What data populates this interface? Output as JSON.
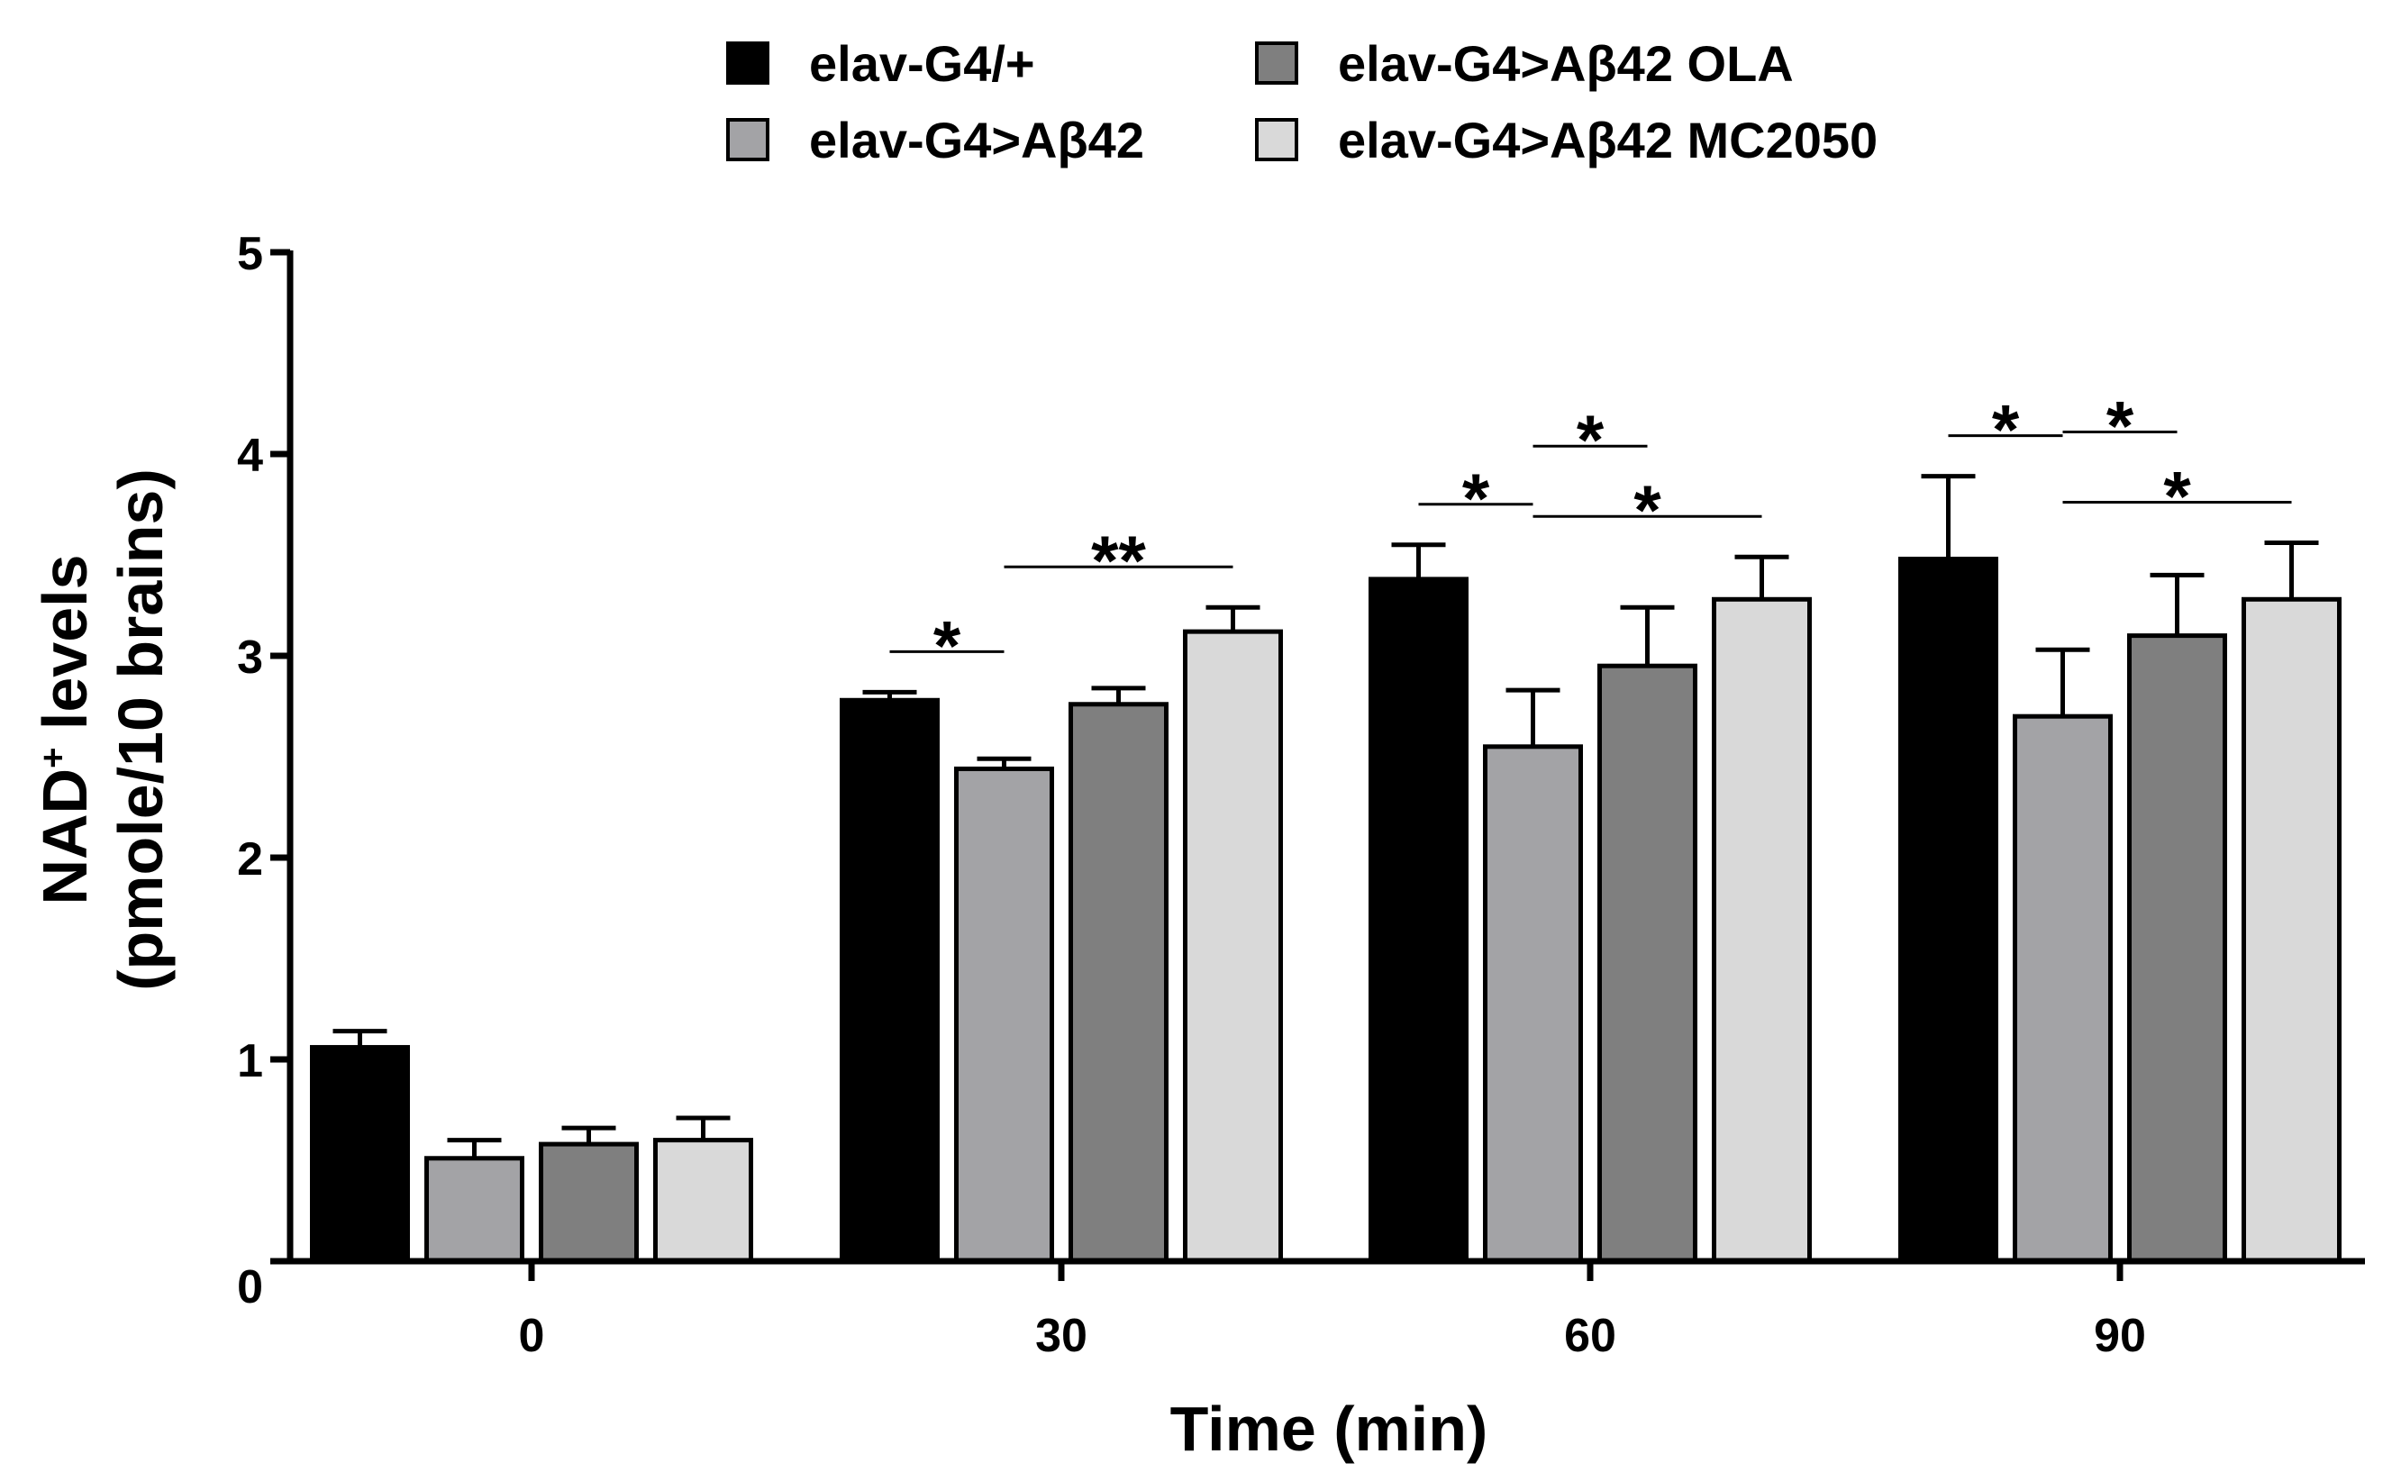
{
  "chart_data": {
    "type": "bar",
    "title": "",
    "xlabel": "Time (min)",
    "ylabel_line1": "NAD+ levels",
    "ylabel_line1_base": "NAD",
    "ylabel_line1_sup": "+",
    "ylabel_line1_rest": " levels",
    "ylabel_line2": "(pmole/10 brains)",
    "ylim": [
      0,
      5
    ],
    "yticks": [
      "0",
      "1",
      "2",
      "3",
      "4",
      "5"
    ],
    "categories": [
      "0",
      "30",
      "60",
      "90"
    ],
    "series": [
      {
        "name": "elav-G4/+",
        "color": "#000000",
        "values": [
          1.06,
          2.78,
          3.38,
          3.48
        ],
        "errors": [
          0.08,
          0.04,
          0.17,
          0.41
        ]
      },
      {
        "name": "elav-G4>Aβ42",
        "color": "#a3a3a6",
        "values": [
          0.51,
          2.44,
          2.55,
          2.7
        ],
        "errors": [
          0.09,
          0.05,
          0.28,
          0.33
        ]
      },
      {
        "name": "elav-G4>Aβ42 OLA",
        "color": "#7f7f7f",
        "values": [
          0.58,
          2.76,
          2.95,
          3.1
        ],
        "errors": [
          0.08,
          0.08,
          0.29,
          0.3
        ]
      },
      {
        "name": "elav-G4>Aβ42 MC2050",
        "color": "#d9d9d9",
        "values": [
          0.6,
          3.12,
          3.28,
          3.28
        ],
        "errors": [
          0.11,
          0.12,
          0.21,
          0.28
        ]
      }
    ],
    "significance": [
      {
        "category": 1,
        "from": 0,
        "to": 1,
        "label": "*"
      },
      {
        "category": 1,
        "from": 1,
        "to": 3,
        "label": "**"
      },
      {
        "category": 2,
        "from": 0,
        "to": 1,
        "label": "*"
      },
      {
        "category": 2,
        "from": 1,
        "to": 3,
        "label": "*"
      },
      {
        "category": 2,
        "from": 1,
        "to": 2,
        "label": "*"
      },
      {
        "category": 3,
        "from": 0,
        "to": 1,
        "label": "*"
      },
      {
        "category": 3,
        "from": 1,
        "to": 3,
        "label": "*"
      },
      {
        "category": 3,
        "from": 1,
        "to": 2,
        "label": "*"
      }
    ]
  }
}
